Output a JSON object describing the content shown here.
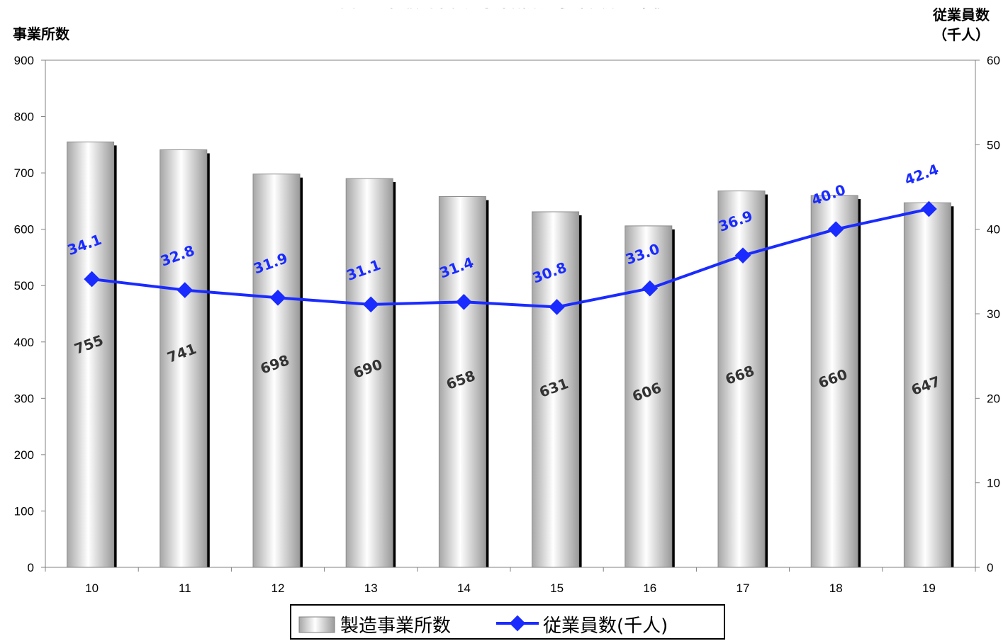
{
  "chart_data": {
    "type": "bar",
    "title": "図　　和歌山県製造事業所数・従業員数の推移",
    "ylabel_left": "事業所数",
    "ylabel_right_line1": "従業員数",
    "ylabel_right_line2": "（千人）",
    "categories": [
      "10",
      "11",
      "12",
      "13",
      "14",
      "15",
      "16",
      "17",
      "18",
      "19"
    ],
    "ylim_left": [
      0,
      900
    ],
    "yticks_left": [
      0,
      100,
      200,
      300,
      400,
      500,
      600,
      700,
      800,
      900
    ],
    "ylim_right": [
      0,
      60
    ],
    "yticks_right": [
      0,
      10,
      20,
      30,
      40,
      50,
      60
    ],
    "grid": false,
    "legend_position": "bottom",
    "series": [
      {
        "name": "製造事業所数",
        "type": "bar",
        "axis": "left",
        "values": [
          755,
          741,
          698,
          690,
          658,
          631,
          606,
          668,
          660,
          647
        ],
        "labels": [
          "755",
          "741",
          "698",
          "690",
          "658",
          "631",
          "606",
          "668",
          "660",
          "647"
        ],
        "color": "#d9d9d9"
      },
      {
        "name": "従業員数(千人)",
        "type": "line",
        "axis": "right",
        "values": [
          34.1,
          32.8,
          31.9,
          31.1,
          31.4,
          30.8,
          33.0,
          36.9,
          40.0,
          42.4
        ],
        "labels": [
          "34.1",
          "32.8",
          "31.9",
          "31.1",
          "31.4",
          "30.8",
          "33.0",
          "36.9",
          "40.0",
          "42.4"
        ],
        "color": "#1a2bff"
      }
    ]
  }
}
